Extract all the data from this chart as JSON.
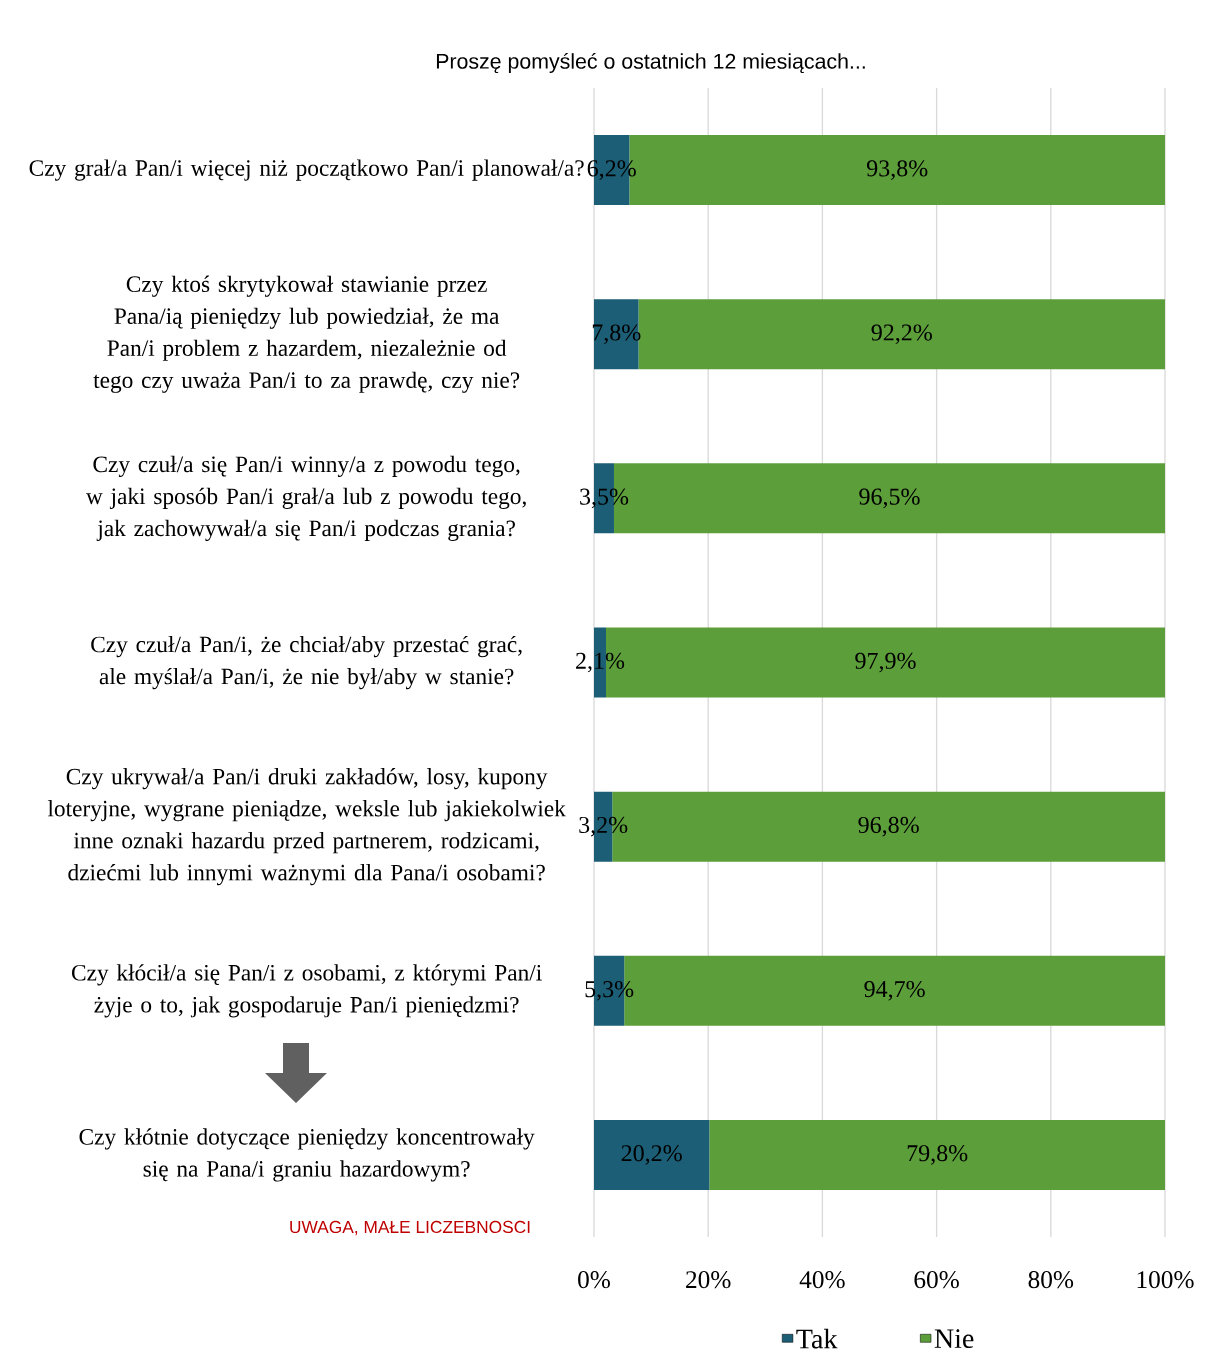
{
  "chart_data": {
    "type": "bar",
    "orientation": "horizontal",
    "stacked": true,
    "title": "Proszę pomyśleć o ostatnich 12 miesiącach...",
    "categories": [
      "Czy grał/a Pan/i więcej niż początkowo Pan/i planował/a?",
      "Czy ktoś skrytykował stawianie przez Pana/ią pieniędzy lub powiedział, że ma Pan/i problem z hazardem, niezależnie od tego czy uważa Pan/i to za prawdę, czy nie?",
      "Czy czuł/a się Pan/i winny/a z powodu tego, w jaki sposób Pan/i grał/a lub z powodu tego, jak zachowywał/a się Pan/i podczas grania?",
      "Czy czuł/a Pan/i, że chciał/aby przestać grać, ale myślał/a Pan/i, że nie był/aby w stanie?",
      "Czy ukrywał/a Pan/i druki zakładów, losy, kupony loteryjne, wygrane pieniądze, weksle lub jakiekolwiek inne oznaki hazardu przed partnerem, rodzicami, dziećmi lub innymi ważnymi dla Pana/i osobami?",
      "Czy kłócił/a się Pan/i z osobami, z którymi Pan/i żyje o to, jak gospodaruje Pan/i pieniędzmi?",
      "Czy kłótnie dotyczące pieniędzy koncentrowały się na Pana/i graniu hazardowym?"
    ],
    "series": [
      {
        "name": "Tak",
        "color": "#1b5e75",
        "values": [
          6.2,
          7.8,
          3.5,
          2.1,
          3.2,
          5.3,
          20.2
        ],
        "value_labels": [
          "6,2%",
          "7,8%",
          "3,5%",
          "2,1%",
          "3,2%",
          "5,3%",
          "20,2%"
        ]
      },
      {
        "name": "Nie",
        "color": "#5c9e3a",
        "values": [
          93.8,
          92.2,
          96.5,
          97.9,
          96.8,
          94.7,
          79.8
        ],
        "value_labels": [
          "93,8%",
          "92,2%",
          "96,5%",
          "97,9%",
          "96,8%",
          "94,7%",
          "79,8%"
        ]
      }
    ],
    "xlim": [
      0,
      100
    ],
    "xticks": [
      {
        "value": 0,
        "label": "0%"
      },
      {
        "value": 20,
        "label": "20%"
      },
      {
        "value": 40,
        "label": "40%"
      },
      {
        "value": 60,
        "label": "60%"
      },
      {
        "value": 80,
        "label": "80%"
      },
      {
        "value": 100,
        "label": "100%"
      }
    ],
    "grid": "x",
    "legend": "bottom",
    "annotations": [
      "UWAGA, MAŁE LICZEBNOSCI"
    ]
  }
}
